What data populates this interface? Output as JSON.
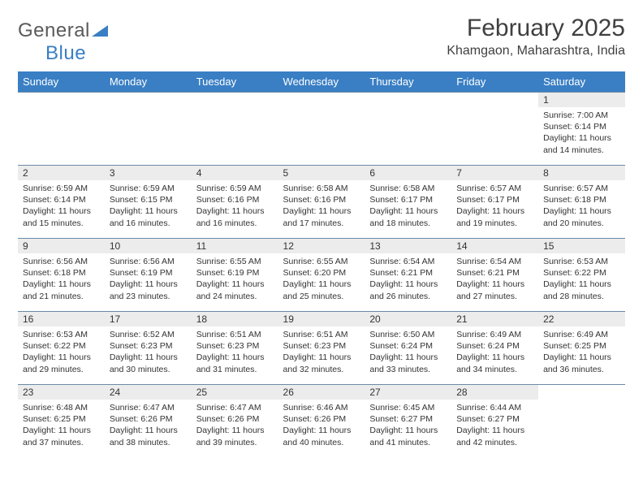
{
  "logo": {
    "text1": "General",
    "text2": "Blue"
  },
  "title": "February 2025",
  "location": "Khamgaon, Maharashtra, India",
  "colors": {
    "header_bg": "#3a7fc4",
    "header_text": "#ffffff",
    "daynum_bg": "#ececec",
    "border": "#6a8aa8",
    "logo_gray": "#5a5a5a",
    "logo_blue": "#3a7fc4"
  },
  "daysOfWeek": [
    "Sunday",
    "Monday",
    "Tuesday",
    "Wednesday",
    "Thursday",
    "Friday",
    "Saturday"
  ],
  "weeks": [
    [
      {
        "n": "",
        "sunrise": "",
        "sunset": "",
        "daylight": ""
      },
      {
        "n": "",
        "sunrise": "",
        "sunset": "",
        "daylight": ""
      },
      {
        "n": "",
        "sunrise": "",
        "sunset": "",
        "daylight": ""
      },
      {
        "n": "",
        "sunrise": "",
        "sunset": "",
        "daylight": ""
      },
      {
        "n": "",
        "sunrise": "",
        "sunset": "",
        "daylight": ""
      },
      {
        "n": "",
        "sunrise": "",
        "sunset": "",
        "daylight": ""
      },
      {
        "n": "1",
        "sunrise": "Sunrise: 7:00 AM",
        "sunset": "Sunset: 6:14 PM",
        "daylight": "Daylight: 11 hours and 14 minutes."
      }
    ],
    [
      {
        "n": "2",
        "sunrise": "Sunrise: 6:59 AM",
        "sunset": "Sunset: 6:14 PM",
        "daylight": "Daylight: 11 hours and 15 minutes."
      },
      {
        "n": "3",
        "sunrise": "Sunrise: 6:59 AM",
        "sunset": "Sunset: 6:15 PM",
        "daylight": "Daylight: 11 hours and 16 minutes."
      },
      {
        "n": "4",
        "sunrise": "Sunrise: 6:59 AM",
        "sunset": "Sunset: 6:16 PM",
        "daylight": "Daylight: 11 hours and 16 minutes."
      },
      {
        "n": "5",
        "sunrise": "Sunrise: 6:58 AM",
        "sunset": "Sunset: 6:16 PM",
        "daylight": "Daylight: 11 hours and 17 minutes."
      },
      {
        "n": "6",
        "sunrise": "Sunrise: 6:58 AM",
        "sunset": "Sunset: 6:17 PM",
        "daylight": "Daylight: 11 hours and 18 minutes."
      },
      {
        "n": "7",
        "sunrise": "Sunrise: 6:57 AM",
        "sunset": "Sunset: 6:17 PM",
        "daylight": "Daylight: 11 hours and 19 minutes."
      },
      {
        "n": "8",
        "sunrise": "Sunrise: 6:57 AM",
        "sunset": "Sunset: 6:18 PM",
        "daylight": "Daylight: 11 hours and 20 minutes."
      }
    ],
    [
      {
        "n": "9",
        "sunrise": "Sunrise: 6:56 AM",
        "sunset": "Sunset: 6:18 PM",
        "daylight": "Daylight: 11 hours and 21 minutes."
      },
      {
        "n": "10",
        "sunrise": "Sunrise: 6:56 AM",
        "sunset": "Sunset: 6:19 PM",
        "daylight": "Daylight: 11 hours and 23 minutes."
      },
      {
        "n": "11",
        "sunrise": "Sunrise: 6:55 AM",
        "sunset": "Sunset: 6:19 PM",
        "daylight": "Daylight: 11 hours and 24 minutes."
      },
      {
        "n": "12",
        "sunrise": "Sunrise: 6:55 AM",
        "sunset": "Sunset: 6:20 PM",
        "daylight": "Daylight: 11 hours and 25 minutes."
      },
      {
        "n": "13",
        "sunrise": "Sunrise: 6:54 AM",
        "sunset": "Sunset: 6:21 PM",
        "daylight": "Daylight: 11 hours and 26 minutes."
      },
      {
        "n": "14",
        "sunrise": "Sunrise: 6:54 AM",
        "sunset": "Sunset: 6:21 PM",
        "daylight": "Daylight: 11 hours and 27 minutes."
      },
      {
        "n": "15",
        "sunrise": "Sunrise: 6:53 AM",
        "sunset": "Sunset: 6:22 PM",
        "daylight": "Daylight: 11 hours and 28 minutes."
      }
    ],
    [
      {
        "n": "16",
        "sunrise": "Sunrise: 6:53 AM",
        "sunset": "Sunset: 6:22 PM",
        "daylight": "Daylight: 11 hours and 29 minutes."
      },
      {
        "n": "17",
        "sunrise": "Sunrise: 6:52 AM",
        "sunset": "Sunset: 6:23 PM",
        "daylight": "Daylight: 11 hours and 30 minutes."
      },
      {
        "n": "18",
        "sunrise": "Sunrise: 6:51 AM",
        "sunset": "Sunset: 6:23 PM",
        "daylight": "Daylight: 11 hours and 31 minutes."
      },
      {
        "n": "19",
        "sunrise": "Sunrise: 6:51 AM",
        "sunset": "Sunset: 6:23 PM",
        "daylight": "Daylight: 11 hours and 32 minutes."
      },
      {
        "n": "20",
        "sunrise": "Sunrise: 6:50 AM",
        "sunset": "Sunset: 6:24 PM",
        "daylight": "Daylight: 11 hours and 33 minutes."
      },
      {
        "n": "21",
        "sunrise": "Sunrise: 6:49 AM",
        "sunset": "Sunset: 6:24 PM",
        "daylight": "Daylight: 11 hours and 34 minutes."
      },
      {
        "n": "22",
        "sunrise": "Sunrise: 6:49 AM",
        "sunset": "Sunset: 6:25 PM",
        "daylight": "Daylight: 11 hours and 36 minutes."
      }
    ],
    [
      {
        "n": "23",
        "sunrise": "Sunrise: 6:48 AM",
        "sunset": "Sunset: 6:25 PM",
        "daylight": "Daylight: 11 hours and 37 minutes."
      },
      {
        "n": "24",
        "sunrise": "Sunrise: 6:47 AM",
        "sunset": "Sunset: 6:26 PM",
        "daylight": "Daylight: 11 hours and 38 minutes."
      },
      {
        "n": "25",
        "sunrise": "Sunrise: 6:47 AM",
        "sunset": "Sunset: 6:26 PM",
        "daylight": "Daylight: 11 hours and 39 minutes."
      },
      {
        "n": "26",
        "sunrise": "Sunrise: 6:46 AM",
        "sunset": "Sunset: 6:26 PM",
        "daylight": "Daylight: 11 hours and 40 minutes."
      },
      {
        "n": "27",
        "sunrise": "Sunrise: 6:45 AM",
        "sunset": "Sunset: 6:27 PM",
        "daylight": "Daylight: 11 hours and 41 minutes."
      },
      {
        "n": "28",
        "sunrise": "Sunrise: 6:44 AM",
        "sunset": "Sunset: 6:27 PM",
        "daylight": "Daylight: 11 hours and 42 minutes."
      },
      {
        "n": "",
        "sunrise": "",
        "sunset": "",
        "daylight": ""
      }
    ]
  ]
}
